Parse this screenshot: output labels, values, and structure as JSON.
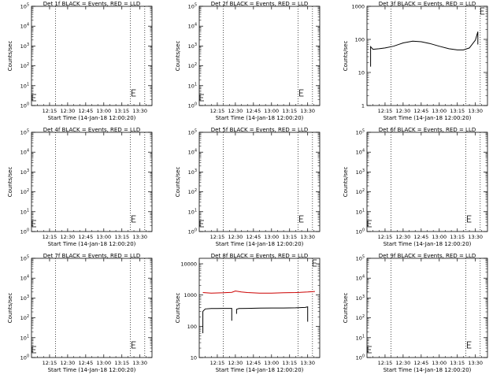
{
  "common": {
    "xlabel": "Start Time (14-Jan-18 12:00:20)",
    "ylabel": "Counts/sec",
    "x_ticks": [
      "12:15",
      "12:30",
      "12:45",
      "13:00",
      "13:15",
      "13:30"
    ],
    "x_tick_minutes": [
      15,
      30,
      45,
      60,
      75,
      90
    ],
    "x_range_minutes": [
      0,
      100
    ],
    "vlines_minutes": [
      20,
      82,
      94
    ],
    "colors": {
      "events": "#000000",
      "lld": "#cc0000"
    }
  },
  "chart_data": [
    {
      "type": "line",
      "title": "Det 1f BLACK = Events, RED = LLD",
      "xlabel": "Start Time (14-Jan-18 12:00:20)",
      "ylabel": "Counts/sec",
      "yscale": "log",
      "ylim": [
        1,
        100000
      ],
      "y_tick_labels": [
        "10^0",
        "10^1",
        "10^2",
        "10^3",
        "10^4",
        "10^5"
      ],
      "y_ticks": [
        1,
        10,
        100,
        1000,
        10000,
        100000
      ],
      "series": []
    },
    {
      "type": "line",
      "title": "Det 2f BLACK = Events, RED = LLD",
      "xlabel": "Start Time (14-Jan-18 12:00:20)",
      "ylabel": "Counts/sec",
      "yscale": "log",
      "ylim": [
        1,
        100000
      ],
      "y_tick_labels": [
        "10^0",
        "10^1",
        "10^2",
        "10^3",
        "10^4",
        "10^5"
      ],
      "y_ticks": [
        1,
        10,
        100,
        1000,
        10000,
        100000
      ],
      "series": []
    },
    {
      "type": "line",
      "title": "Det 3f BLACK = Events, RED = LLD",
      "xlabel": "Start Time (14-Jan-18 12:00:20)",
      "ylabel": "Counts/sec",
      "yscale": "log",
      "ylim": [
        1,
        1000
      ],
      "y_tick_labels": [
        "1",
        "10",
        "100",
        "1000"
      ],
      "y_ticks": [
        1,
        10,
        100,
        1000
      ],
      "series": [
        {
          "color": "#000000",
          "x": [
            3,
            3,
            5,
            10,
            15,
            22,
            30,
            38,
            45,
            52,
            60,
            68,
            75,
            80,
            85,
            90,
            92,
            92
          ],
          "y": [
            15,
            60,
            50,
            52,
            55,
            62,
            78,
            88,
            85,
            75,
            62,
            52,
            48,
            48,
            55,
            95,
            170,
            70
          ]
        }
      ]
    },
    {
      "type": "line",
      "title": "Det 4f BLACK = Events, RED = LLD",
      "xlabel": "Start Time (14-Jan-18 12:00:20)",
      "ylabel": "Counts/sec",
      "yscale": "log",
      "ylim": [
        1,
        100000
      ],
      "y_tick_labels": [
        "10^0",
        "10^1",
        "10^2",
        "10^3",
        "10^4",
        "10^5"
      ],
      "y_ticks": [
        1,
        10,
        100,
        1000,
        10000,
        100000
      ],
      "series": []
    },
    {
      "type": "line",
      "title": "Det 5f BLACK = Events, RED = LLD",
      "xlabel": "Start Time (14-Jan-18 12:00:20)",
      "ylabel": "Counts/sec",
      "yscale": "log",
      "ylim": [
        1,
        100000
      ],
      "y_tick_labels": [
        "10^0",
        "10^1",
        "10^2",
        "10^3",
        "10^4",
        "10^5"
      ],
      "y_ticks": [
        1,
        10,
        100,
        1000,
        10000,
        100000
      ],
      "series": []
    },
    {
      "type": "line",
      "title": "Det 6f BLACK = Events, RED = LLD",
      "xlabel": "Start Time (14-Jan-18 12:00:20)",
      "ylabel": "Counts/sec",
      "yscale": "log",
      "ylim": [
        1,
        100000
      ],
      "y_tick_labels": [
        "10^0",
        "10^1",
        "10^2",
        "10^3",
        "10^4",
        "10^5"
      ],
      "y_ticks": [
        1,
        10,
        100,
        1000,
        10000,
        100000
      ],
      "series": []
    },
    {
      "type": "line",
      "title": "Det 7f BLACK = Events, RED = LLD",
      "xlabel": "Start Time (14-Jan-18 12:00:20)",
      "ylabel": "Counts/sec",
      "yscale": "log",
      "ylim": [
        1,
        100000
      ],
      "y_tick_labels": [
        "10^0",
        "10^1",
        "10^2",
        "10^3",
        "10^4",
        "10^5"
      ],
      "y_ticks": [
        1,
        10,
        100,
        1000,
        10000,
        100000
      ],
      "series": []
    },
    {
      "type": "line",
      "title": "Det 8f BLACK = Events, RED = LLD",
      "xlabel": "Start Time (14-Jan-18 12:00:20)",
      "ylabel": "Counts/sec",
      "yscale": "log",
      "ylim": [
        10,
        15000
      ],
      "y_tick_labels": [
        "10",
        "100",
        "1000",
        "10000"
      ],
      "y_ticks": [
        10,
        100,
        1000,
        10000
      ],
      "series": [
        {
          "color": "#cc0000",
          "x": [
            3,
            10,
            20,
            27,
            30,
            35,
            40,
            50,
            60,
            70,
            80,
            90,
            96
          ],
          "y": [
            1200,
            1150,
            1180,
            1220,
            1350,
            1250,
            1200,
            1150,
            1150,
            1180,
            1200,
            1250,
            1300
          ]
        },
        {
          "color": "#000000",
          "x": [
            3,
            3,
            5,
            10,
            15,
            20,
            25,
            27,
            27
          ],
          "y": [
            60,
            300,
            360,
            370,
            370,
            375,
            375,
            375,
            150
          ]
        },
        {
          "color": "#000000",
          "x": [
            31,
            31,
            33,
            40,
            50,
            60,
            70,
            80,
            88,
            90,
            90
          ],
          "y": [
            250,
            350,
            370,
            375,
            380,
            385,
            385,
            390,
            400,
            420,
            140
          ]
        }
      ]
    },
    {
      "type": "line",
      "title": "Det 9f BLACK = Events, RED = LLD",
      "xlabel": "Start Time (14-Jan-18 12:00:20)",
      "ylabel": "Counts/sec",
      "yscale": "log",
      "ylim": [
        1,
        100000
      ],
      "y_tick_labels": [
        "10^0",
        "10^1",
        "10^2",
        "10^3",
        "10^4",
        "10^5"
      ],
      "y_ticks": [
        1,
        10,
        100,
        1000,
        10000,
        100000
      ],
      "series": []
    }
  ]
}
